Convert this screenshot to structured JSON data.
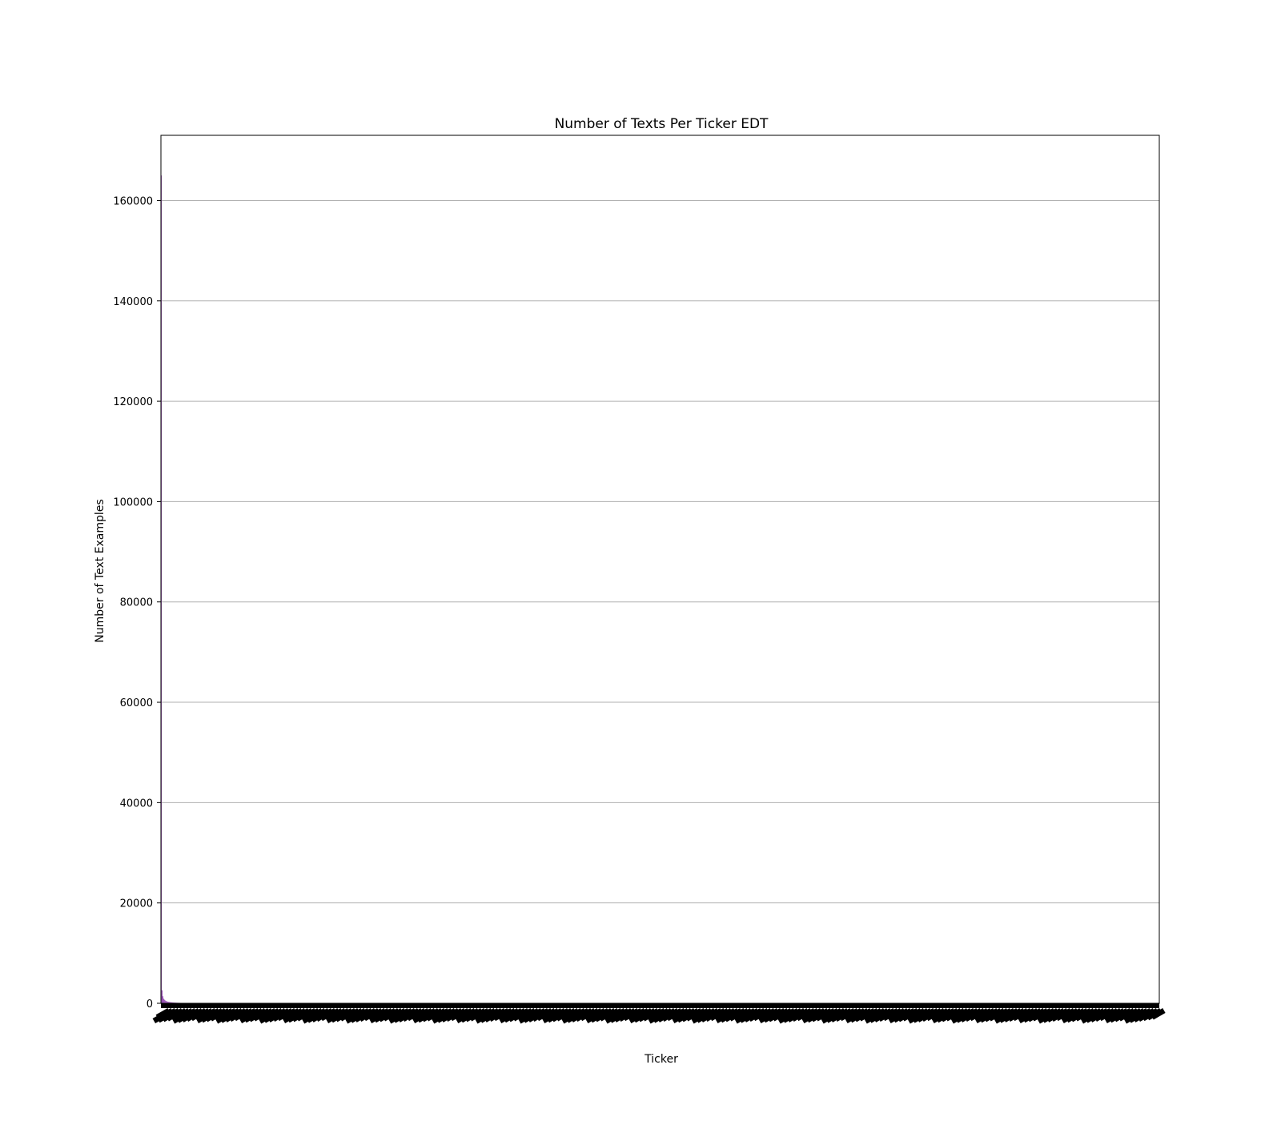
{
  "chart_data": {
    "type": "bar",
    "title": "Number of Texts Per Ticker EDT",
    "xlabel": "Ticker",
    "ylabel": "Number of Text Examples",
    "ylim": [
      0,
      173000
    ],
    "yticks": [
      0,
      20000,
      40000,
      60000,
      80000,
      100000,
      120000,
      140000,
      160000
    ],
    "grid": "horizontal",
    "bar_color": "#8e44ad",
    "x_tick_labels": "illegible (very many rotated ticker labels)",
    "series": [
      {
        "values": [
          165000,
          2600,
          1400,
          900,
          700,
          550,
          450,
          380,
          320,
          280,
          250,
          220,
          200,
          180,
          160,
          150,
          140,
          130,
          120,
          110,
          100,
          95,
          90,
          85,
          80,
          75,
          70,
          65,
          60,
          55
        ]
      }
    ],
    "tail_value": 20
  }
}
